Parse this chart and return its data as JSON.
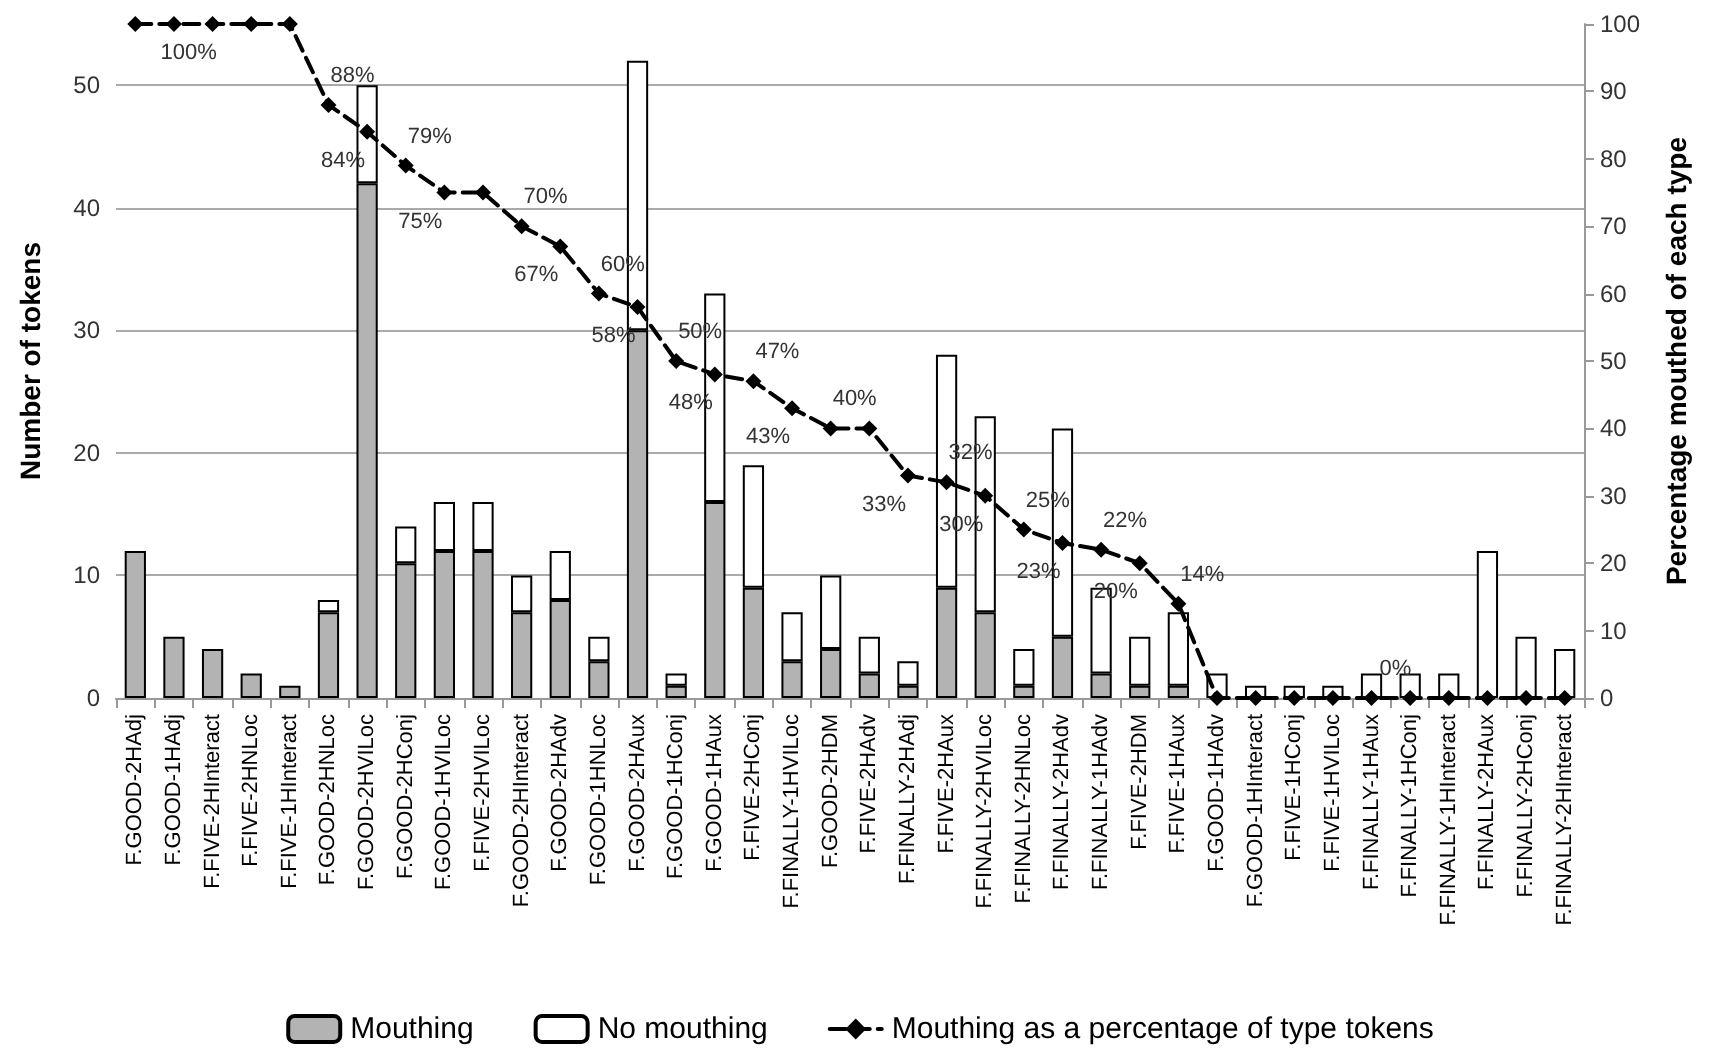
{
  "chart_data": {
    "type": "bar",
    "stacked": true,
    "xlabel": null,
    "ylabel": "Number of tokens",
    "y2label": "Percentage mouthed of each type",
    "categories": [
      "F.GOOD-2HAdj",
      "F.GOOD-1HAdj",
      "F.FIVE-2HInteract",
      "F.FIVE-2HNLoc",
      "F.FIVE-1HInteract",
      "F.GOOD-2HNLoc",
      "F.GOOD-2HVILoc",
      "F.GOOD-2HConj",
      "F.GOOD-1HVILoc",
      "F.FIVE-2HVILoc",
      "F.GOOD-2HInteract",
      "F.GOOD-2HAdv",
      "F.GOOD-1HNLoc",
      "F.GOOD-2HAux",
      "F.GOOD-1HConj",
      "F.GOOD-1HAux",
      "F.FIVE-2HConj",
      "F.FINALLY-1HVILoc",
      "F.GOOD-2HDM",
      "F.FIVE-2HAdv",
      "F.FINALLY-2HAdj",
      "F.FIVE-2HAux",
      "F.FINALLY-2HVILoc",
      "F.FINALLY-2HNLoc",
      "F.FINALLY-2HAdv",
      "F.FINALLY-1HAdv",
      "F.FIVE-2HDM",
      "F.FIVE-1HAux",
      "F.GOOD-1HAdv",
      "F.GOOD-1HInteract",
      "F.FIVE-1HConj",
      "F.FIVE-1HVILoc",
      "F.FINALLY-1HAux",
      "F.FINALLY-1HConj",
      "F.FINALLY-1HInteract",
      "F.FINALLY-2HAux",
      "F.FINALLY-2HConj",
      "F.FINALLY-2HInteract"
    ],
    "series": [
      {
        "name": "Mouthing",
        "color": "#b3b3b3",
        "values": [
          12,
          5,
          4,
          2,
          1,
          7,
          42,
          11,
          12,
          12,
          7,
          8,
          3,
          30,
          1,
          16,
          9,
          3,
          4,
          2,
          1,
          9,
          7,
          1,
          5,
          2,
          1,
          1,
          0,
          0,
          0,
          0,
          0,
          0,
          0,
          0,
          0,
          0
        ]
      },
      {
        "name": "No mouthing",
        "color": "#ffffff",
        "values": [
          0,
          0,
          0,
          0,
          0,
          1,
          8,
          3,
          4,
          4,
          3,
          4,
          2,
          22,
          1,
          17,
          10,
          4,
          6,
          3,
          2,
          19,
          16,
          3,
          17,
          7,
          4,
          6,
          2,
          1,
          1,
          1,
          2,
          2,
          2,
          12,
          5,
          4
        ]
      },
      {
        "name": "Mouthing as a percentage of type tokens",
        "type": "line",
        "axis": "y2",
        "color": "#000000",
        "marker": "diamond",
        "line_style": "dashed",
        "values": [
          100,
          100,
          100,
          100,
          100,
          88,
          84,
          79,
          75,
          75,
          70,
          67,
          60,
          58,
          50,
          48,
          47,
          43,
          40,
          40,
          33,
          32,
          30,
          25,
          23,
          22,
          20,
          14,
          0,
          0,
          0,
          0,
          0,
          0,
          0,
          0,
          0,
          0
        ],
        "value_labels": [
          null,
          null,
          "100%",
          null,
          null,
          "88%",
          "84%",
          "79%",
          "75%",
          null,
          "70%",
          "67%",
          "60%",
          "58%",
          "50%",
          "48%",
          "47%",
          "43%",
          "40%",
          null,
          "33%",
          "32%",
          "30%",
          "25%",
          "23%",
          "22%",
          "20%",
          "14%",
          null,
          null,
          null,
          null,
          "0%",
          null,
          null,
          null,
          null,
          null
        ]
      }
    ],
    "ylim": [
      0,
      55
    ],
    "yticks": [
      0,
      10,
      20,
      30,
      40,
      50
    ],
    "y2lim": [
      0,
      100
    ],
    "y2ticks": [
      0,
      10,
      20,
      30,
      40,
      50,
      60,
      70,
      80,
      90,
      100
    ],
    "grid": "y",
    "legend": "bottom"
  }
}
